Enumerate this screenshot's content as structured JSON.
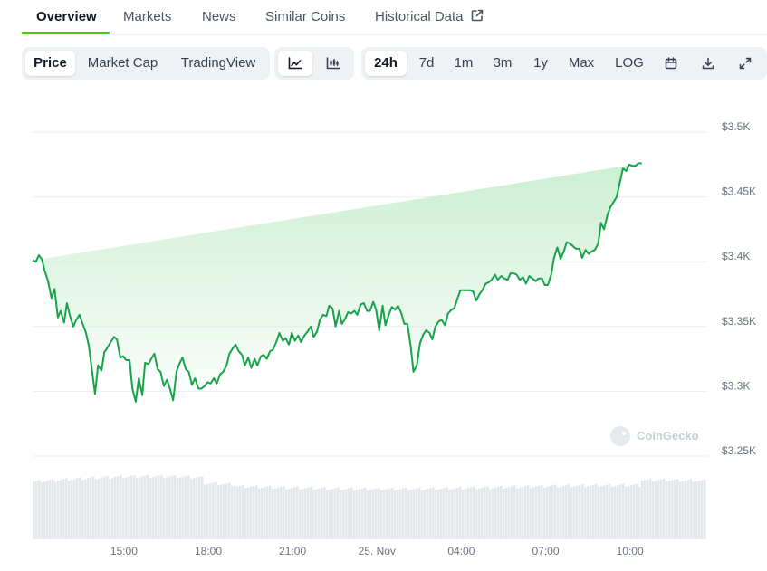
{
  "tabs": [
    {
      "label": "Overview"
    },
    {
      "label": "Markets"
    },
    {
      "label": "News"
    },
    {
      "label": "Similar Coins"
    },
    {
      "label": "Historical Data"
    }
  ],
  "toolbar": {
    "type_options": [
      "Price",
      "Market Cap",
      "TradingView"
    ],
    "selected_type": "Price",
    "chart_style_icons": [
      "line-chart-icon",
      "candlestick-chart-icon"
    ],
    "range_options": [
      "24h",
      "7d",
      "1m",
      "3m",
      "1y",
      "Max",
      "LOG"
    ],
    "selected_range": "24h",
    "action_icons": [
      "calendar-icon",
      "download-icon",
      "fullscreen-icon"
    ]
  },
  "watermark": "CoinGecko",
  "colors": {
    "line": "#16a34a",
    "accent": "#4bcc00",
    "area_top": "#c9eecf",
    "volume": "#e3e6ea"
  },
  "chart_data": {
    "type": "area",
    "yticks": [
      "$3.5K",
      "$3.45K",
      "$3.4K",
      "$3.35K",
      "$3.3K",
      "$3.25K"
    ],
    "xticks": [
      "15:00",
      "18:00",
      "21:00",
      "25. Nov",
      "04:00",
      "07:00",
      "10:00"
    ],
    "ylim": [
      3250,
      3500
    ],
    "x_hours": [
      0.0,
      0.12,
      0.22,
      0.33,
      0.43,
      0.55,
      0.67,
      0.78,
      0.9,
      1.0,
      1.12,
      1.22,
      1.33,
      1.45,
      1.55,
      1.67,
      1.78,
      1.9,
      2.0,
      2.12,
      2.22,
      2.33,
      2.45,
      2.55,
      2.67,
      2.78,
      2.9,
      3.0,
      3.12,
      3.22,
      3.33,
      3.45,
      3.55,
      3.67,
      3.78,
      3.9,
      4.0,
      4.12,
      4.22,
      4.33,
      4.45,
      4.55,
      4.67,
      4.78,
      4.9,
      5.0,
      5.12,
      5.22,
      5.33,
      5.45,
      5.55,
      5.67,
      5.78,
      5.9,
      6.0,
      6.12,
      6.22,
      6.33,
      6.45,
      6.55,
      6.67,
      6.78,
      6.9,
      7.0,
      7.12,
      7.22,
      7.33,
      7.45,
      7.55,
      7.67,
      7.78,
      7.9,
      8.0,
      8.12,
      8.22,
      8.33,
      8.45,
      8.55,
      8.67,
      8.78,
      8.9,
      9.0,
      9.12,
      9.22,
      9.33,
      9.45,
      9.55,
      9.67,
      9.78,
      9.9,
      10.0,
      10.12,
      10.22,
      10.33,
      10.45,
      10.55,
      10.67,
      10.78,
      10.9,
      11.0,
      11.12,
      11.22,
      11.33,
      11.45,
      11.55,
      11.67,
      11.78,
      11.9,
      12.0,
      12.12,
      12.22,
      12.33,
      12.45,
      12.55,
      12.67,
      12.78,
      12.9,
      13.0,
      13.12,
      13.22,
      13.33,
      13.45,
      13.55,
      13.67,
      13.78,
      13.9,
      14.0,
      14.12,
      14.22,
      14.33,
      14.45,
      14.55,
      14.67,
      14.78,
      14.9,
      15.0,
      15.12,
      15.22,
      15.33,
      15.45,
      15.55,
      15.67,
      15.78,
      15.9,
      16.0,
      16.12,
      16.22,
      16.33,
      16.45,
      16.55,
      16.67,
      16.78,
      16.9,
      17.0,
      17.12,
      17.22,
      17.33,
      17.45,
      17.55,
      17.67,
      17.78,
      17.9,
      18.0,
      18.12,
      18.22,
      18.33,
      18.45,
      18.55,
      18.67,
      18.78,
      18.9,
      19.0,
      19.12,
      19.22,
      19.33,
      19.45,
      19.55,
      19.67,
      19.78,
      19.9,
      20.0,
      20.12,
      20.22,
      20.33,
      20.45,
      20.55,
      20.67,
      20.78,
      20.9,
      21.0,
      21.12,
      21.22,
      21.33,
      21.45,
      21.55,
      21.67,
      21.78,
      21.9,
      22.0,
      22.12,
      22.22,
      22.33,
      22.45,
      22.55,
      22.67,
      22.78,
      22.9,
      23.0,
      23.12,
      23.22,
      23.33,
      23.45,
      23.55,
      23.67,
      23.78,
      23.9,
      24.0
    ],
    "price": [
      3401,
      3400,
      3405,
      3402,
      3393,
      3385,
      3372,
      3379,
      3357,
      3362,
      3353,
      3368,
      3358,
      3350,
      3355,
      3359,
      3352,
      3345,
      3335,
      3315,
      3298,
      3320,
      3316,
      3330,
      3334,
      3338,
      3342,
      3340,
      3326,
      3327,
      3324,
      3324,
      3302,
      3292,
      3310,
      3297,
      3322,
      3321,
      3325,
      3329,
      3317,
      3315,
      3304,
      3309,
      3301,
      3293,
      3315,
      3321,
      3326,
      3317,
      3315,
      3305,
      3310,
      3302,
      3302,
      3304,
      3307,
      3306,
      3310,
      3306,
      3313,
      3315,
      3320,
      3329,
      3333,
      3336,
      3331,
      3328,
      3320,
      3326,
      3318,
      3325,
      3320,
      3327,
      3328,
      3325,
      3331,
      3332,
      3338,
      3345,
      3339,
      3341,
      3336,
      3345,
      3339,
      3343,
      3338,
      3343,
      3346,
      3350,
      3342,
      3346,
      3355,
      3359,
      3358,
      3366,
      3364,
      3350,
      3362,
      3352,
      3356,
      3361,
      3360,
      3362,
      3359,
      3367,
      3368,
      3362,
      3362,
      3369,
      3363,
      3347,
      3366,
      3351,
      3359,
      3365,
      3363,
      3366,
      3360,
      3352,
      3352,
      3335,
      3315,
      3320,
      3337,
      3344,
      3347,
      3345,
      3340,
      3350,
      3354,
      3355,
      3351,
      3360,
      3363,
      3364,
      3372,
      3378,
      3378,
      3378,
      3378,
      3377,
      3370,
      3375,
      3378,
      3383,
      3384,
      3386,
      3390,
      3386,
      3389,
      3387,
      3386,
      3391,
      3391,
      3390,
      3386,
      3388,
      3383,
      3389,
      3387,
      3385,
      3387,
      3387,
      3382,
      3382,
      3390,
      3403,
      3411,
      3402,
      3408,
      3415,
      3414,
      3412,
      3410,
      3410,
      3403,
      3409,
      3406,
      3408,
      3409,
      3414,
      3430,
      3425,
      3436,
      3442,
      3446,
      3450,
      3462,
      3472,
      3470,
      3475,
      3474,
      3474,
      3476,
      3476
    ]
  }
}
